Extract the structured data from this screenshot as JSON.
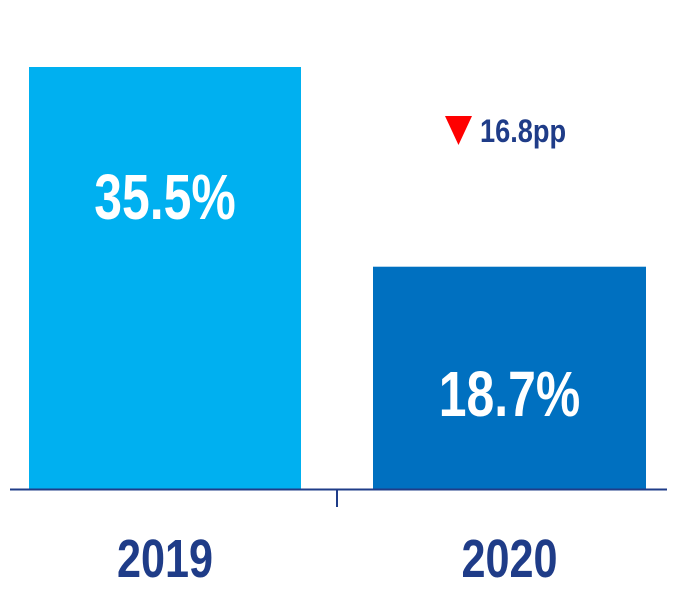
{
  "chart_data": {
    "type": "bar",
    "categories": [
      "2019",
      "2020"
    ],
    "values": [
      35.5,
      18.7
    ],
    "value_labels": [
      "35.5%",
      "18.7%"
    ],
    "bar_colors": [
      "#00b0f0",
      "#0070c0"
    ],
    "label_color": "#ffffff",
    "tick_color": "#1f3c88",
    "axis_color": "#1f3c88",
    "ylim": [
      0,
      35.5
    ],
    "grid": false,
    "annotation": {
      "text": "16.8pp",
      "direction": "down",
      "arrow_color": "#ff0000",
      "text_color": "#1f3c88"
    }
  }
}
